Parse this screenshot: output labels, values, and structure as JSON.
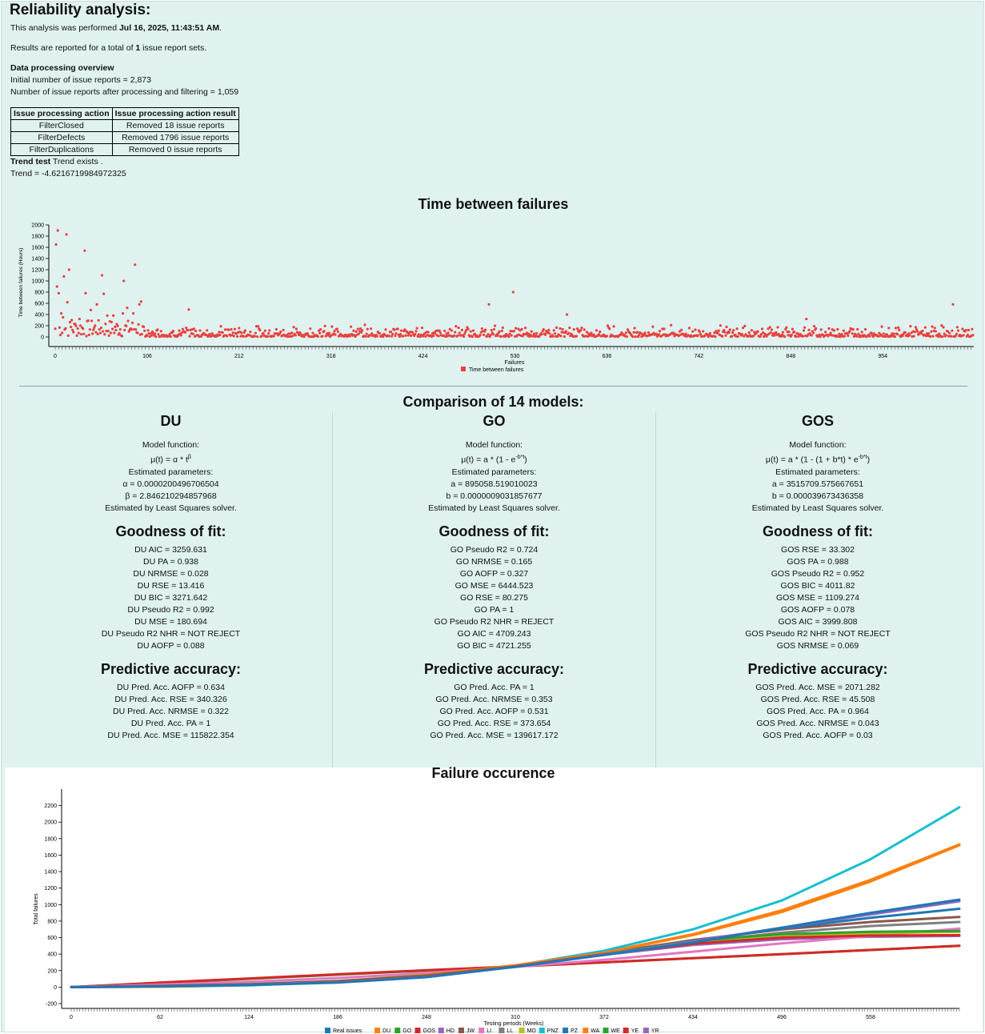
{
  "report": {
    "title": "Reliability analysis:",
    "performed_prefix": "This analysis was performed ",
    "performed_date": "Jul 16, 2025, 11:43:51 AM",
    "performed_suffix": ".",
    "results_prefix": "Results are reported for a total of ",
    "results_count": "1",
    "results_suffix": " issue report sets.",
    "overview_heading": "Data processing overview",
    "initial_count": "Initial number of issue reports = 2,873",
    "after_count": "Number of issue reports after processing and filtering = 1,059",
    "trend_label": "Trend test",
    "trend_result": " Trend exists .",
    "trend_value": "Trend = -4.6216719984972325"
  },
  "processing_table": {
    "headers": [
      "Issue processing action",
      "Issue processing action result"
    ],
    "rows": [
      [
        "FilterClosed",
        "Removed 18 issue reports"
      ],
      [
        "FilterDefects",
        "Removed 1796 issue reports"
      ],
      [
        "FilterDuplications",
        "Removed 0 issue reports"
      ]
    ]
  },
  "comparison_title": "Comparison of 14 models:",
  "models": [
    {
      "name": "DU",
      "function_label": "Model function:",
      "function_base": "μ(t) = α * t",
      "function_sup": "β",
      "function_tail": "",
      "params_label": "Estimated parameters:",
      "params": [
        "α = 0.0000200496706504",
        "β = 2.846210294857968"
      ],
      "solver": "Estimated by Least Squares solver.",
      "gof_title": "Goodness of fit:",
      "gof": [
        "DU AIC = 3259.631",
        "DU PA = 0.938",
        "DU NRMSE = 0.028",
        "DU RSE = 13.416",
        "DU BIC = 3271.642",
        "DU Pseudo R2 = 0.992",
        "DU MSE = 180.694",
        "DU Pseudo R2 NHR = NOT REJECT",
        "DU AOFP = 0.088"
      ],
      "pa_title": "Predictive accuracy:",
      "pa": [
        "DU Pred. Acc. AOFP = 0.634",
        "DU Pred. Acc. RSE = 340.326",
        "DU Pred. Acc. NRMSE = 0.322",
        "DU Pred. Acc. PA = 1",
        "DU Pred. Acc. MSE = 115822.354"
      ]
    },
    {
      "name": "GO",
      "function_label": "Model function:",
      "function_base": "μ(t) = a * (1 - e",
      "function_sup": "-b*t",
      "function_tail": ")",
      "params_label": "Estimated parameters:",
      "params": [
        "a = 895058.519010023",
        "b = 0.0000009031857677"
      ],
      "solver": "Estimated by Least Squares solver.",
      "gof_title": "Goodness of fit:",
      "gof": [
        "GO Pseudo R2 = 0.724",
        "GO NRMSE = 0.165",
        "GO AOFP = 0.327",
        "GO MSE = 6444.523",
        "GO RSE = 80.275",
        "GO PA = 1",
        "GO Pseudo R2 NHR = REJECT",
        "GO AIC = 4709.243",
        "GO BIC = 4721.255"
      ],
      "pa_title": "Predictive accuracy:",
      "pa": [
        "GO Pred. Acc. PA = 1",
        "GO Pred. Acc. NRMSE = 0.353",
        "GO Pred. Acc. AOFP = 0.531",
        "GO Pred. Acc. RSE = 373.654",
        "GO Pred. Acc. MSE = 139617.172"
      ]
    },
    {
      "name": "GOS",
      "function_label": "Model function:",
      "function_base": "μ(t) = a * (1 - (1 + b*t) * e",
      "function_sup": "-b*t",
      "function_tail": ")",
      "params_label": "Estimated parameters:",
      "params": [
        "a = 3515709.575667651",
        "b = 0.000039673436358"
      ],
      "solver": "Estimated by Least Squares solver.",
      "gof_title": "Goodness of fit:",
      "gof": [
        "GOS RSE = 33.302",
        "GOS PA = 0.988",
        "GOS Pseudo R2 = 0.952",
        "GOS BIC = 4011.82",
        "GOS MSE = 1109.274",
        "GOS AOFP = 0.078",
        "GOS AIC = 3999.808",
        "GOS Pseudo R2 NHR = NOT REJECT",
        "GOS NRMSE = 0.069"
      ],
      "pa_title": "Predictive accuracy:",
      "pa": [
        "GOS Pred. Acc. MSE = 2071.282",
        "GOS Pred. Acc. RSE = 45.508",
        "GOS Pred. Acc. PA = 0.964",
        "GOS Pred. Acc. NRMSE = 0.043",
        "GOS Pred. Acc. AOFP = 0.03"
      ]
    }
  ],
  "chart_data": [
    {
      "type": "scatter",
      "title": "Time between failures",
      "xlabel": "Failures",
      "ylabel": "Time between failures (Hours)",
      "xlim": [
        0,
        1059
      ],
      "ylim": [
        0,
        2000
      ],
      "x_ticks": [
        0,
        106,
        212,
        318,
        424,
        530,
        636,
        742,
        848,
        954
      ],
      "y_ticks": [
        0,
        200,
        400,
        600,
        800,
        1000,
        1200,
        1400,
        1600,
        1800,
        2000
      ],
      "legend": [
        "Time between failures"
      ],
      "legend_position": "bottom-center",
      "color": "#e8413f",
      "outliers": [
        {
          "x": 1,
          "y": 1650
        },
        {
          "x": 2,
          "y": 900
        },
        {
          "x": 3,
          "y": 1900
        },
        {
          "x": 4,
          "y": 780
        },
        {
          "x": 7,
          "y": 420
        },
        {
          "x": 9,
          "y": 350
        },
        {
          "x": 10,
          "y": 1080
        },
        {
          "x": 13,
          "y": 1830
        },
        {
          "x": 14,
          "y": 620
        },
        {
          "x": 16,
          "y": 1200
        },
        {
          "x": 19,
          "y": 300
        },
        {
          "x": 23,
          "y": 230
        },
        {
          "x": 28,
          "y": 320
        },
        {
          "x": 34,
          "y": 1540
        },
        {
          "x": 35,
          "y": 780
        },
        {
          "x": 41,
          "y": 480
        },
        {
          "x": 48,
          "y": 580
        },
        {
          "x": 54,
          "y": 1100
        },
        {
          "x": 56,
          "y": 770
        },
        {
          "x": 60,
          "y": 380
        },
        {
          "x": 67,
          "y": 380
        },
        {
          "x": 78,
          "y": 420
        },
        {
          "x": 79,
          "y": 1000
        },
        {
          "x": 83,
          "y": 520
        },
        {
          "x": 90,
          "y": 420
        },
        {
          "x": 92,
          "y": 1290
        },
        {
          "x": 97,
          "y": 580
        },
        {
          "x": 99,
          "y": 630
        },
        {
          "x": 154,
          "y": 490
        },
        {
          "x": 500,
          "y": 580
        },
        {
          "x": 528,
          "y": 800
        },
        {
          "x": 590,
          "y": 400
        },
        {
          "x": 866,
          "y": 320
        },
        {
          "x": 1035,
          "y": 580
        }
      ]
    },
    {
      "type": "line",
      "title": "Failure occurence",
      "xlabel": "Testing periods (Weeks)",
      "ylabel": "Total failures",
      "xlim": [
        0,
        620
      ],
      "ylim": [
        -200,
        2400
      ],
      "x_ticks": [
        0,
        62,
        124,
        186,
        248,
        310,
        372,
        434,
        496,
        558
      ],
      "y_ticks": [
        -200,
        0,
        200,
        400,
        600,
        800,
        1000,
        1200,
        1400,
        1600,
        1800,
        2000,
        2200
      ],
      "legend_position": "bottom-center",
      "x": [
        0,
        62,
        124,
        186,
        248,
        310,
        372,
        434,
        496,
        558,
        620
      ],
      "series": [
        {
          "name": "Real issues",
          "color": "#1f77b4",
          "values": [
            0,
            10,
            25,
            55,
            120,
            245,
            390,
            540,
            720,
            900,
            1060
          ]
        },
        {
          "name": "DU",
          "color": "#ff7f0e",
          "values": [
            0,
            5,
            25,
            70,
            150,
            265,
            420,
            640,
            930,
            1300,
            1730
          ]
        },
        {
          "name": "GO",
          "color": "#2ca02c",
          "values": [
            0,
            50,
            100,
            150,
            200,
            250,
            300,
            350,
            400,
            450,
            500
          ]
        },
        {
          "name": "GOS",
          "color": "#d62728",
          "values": [
            0,
            55,
            105,
            155,
            205,
            250,
            300,
            350,
            400,
            450,
            500
          ]
        },
        {
          "name": "HD",
          "color": "#9467bd",
          "values": [
            0,
            12,
            32,
            70,
            135,
            250,
            390,
            510,
            580,
            610,
            620
          ]
        },
        {
          "name": "JW",
          "color": "#8c564b",
          "values": [
            0,
            12,
            30,
            65,
            130,
            250,
            410,
            570,
            700,
            790,
            850
          ]
        },
        {
          "name": "LI",
          "color": "#e377c2",
          "values": [
            0,
            30,
            65,
            110,
            170,
            245,
            330,
            430,
            530,
            620,
            710
          ]
        },
        {
          "name": "LL",
          "color": "#7f7f7f",
          "values": [
            0,
            10,
            28,
            62,
            125,
            248,
            400,
            545,
            660,
            740,
            790
          ]
        },
        {
          "name": "MO",
          "color": "#bcbd22",
          "values": [
            0,
            12,
            30,
            66,
            132,
            248,
            395,
            530,
            610,
            650,
            670
          ]
        },
        {
          "name": "PNZ",
          "color": "#17becf",
          "values": [
            0,
            4,
            20,
            60,
            140,
            260,
            440,
            700,
            1050,
            1550,
            2180
          ]
        },
        {
          "name": "PZ",
          "color": "#1f77b4",
          "values": [
            0,
            10,
            28,
            62,
            128,
            248,
            400,
            560,
            710,
            840,
            950
          ]
        },
        {
          "name": "WA",
          "color": "#ff7f0e",
          "values": [
            0,
            5,
            25,
            68,
            148,
            262,
            418,
            630,
            910,
            1280,
            1720
          ]
        },
        {
          "name": "WE",
          "color": "#2ca02c",
          "values": [
            0,
            14,
            36,
            75,
            140,
            250,
            400,
            560,
            640,
            670,
            680
          ]
        },
        {
          "name": "YE",
          "color": "#d62728",
          "values": [
            0,
            12,
            32,
            68,
            132,
            250,
            400,
            525,
            600,
            625,
            630
          ]
        },
        {
          "name": "YR",
          "color": "#9467bd",
          "values": [
            0,
            10,
            28,
            60,
            124,
            246,
            395,
            555,
            720,
            880,
            1040
          ]
        }
      ]
    }
  ]
}
